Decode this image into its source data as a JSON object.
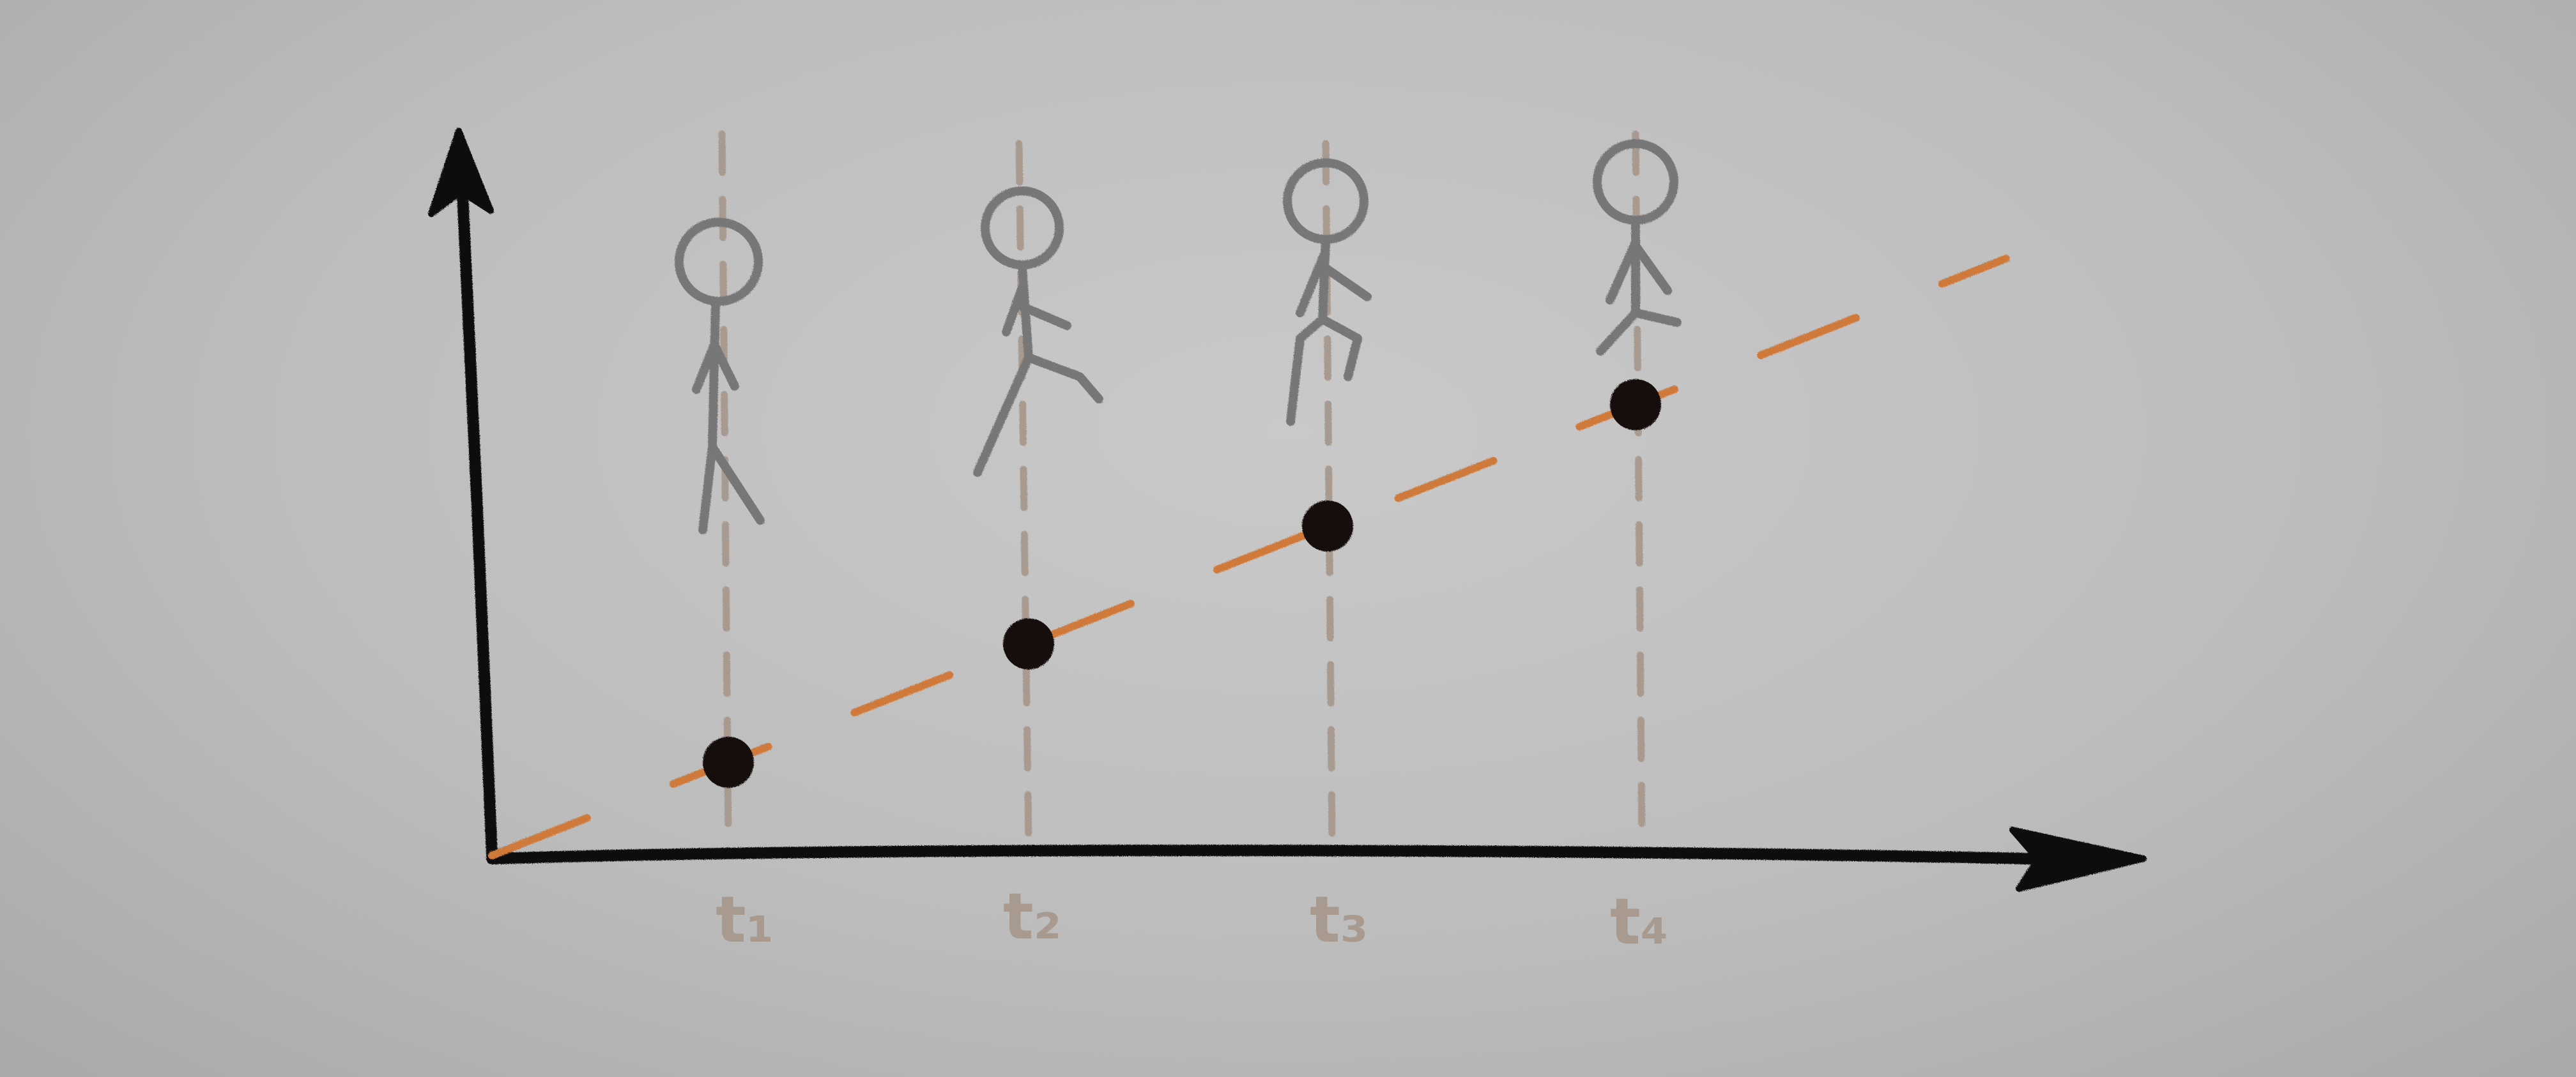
{
  "colors": {
    "axis": "#0d0d0d",
    "guide": "#a89a8e",
    "trend": "#cf7a3a",
    "figure": "#777777",
    "point": "#141010",
    "label": "#a89a8e"
  },
  "time_labels": [
    {
      "id": "t1",
      "text": "t₁"
    },
    {
      "id": "t2",
      "text": "t₂"
    },
    {
      "id": "t3",
      "text": "t₃"
    },
    {
      "id": "t4",
      "text": "t₄"
    }
  ],
  "figures": [
    {
      "pose": "standing"
    },
    {
      "pose": "running"
    },
    {
      "pose": "running"
    },
    {
      "pose": "walking"
    }
  ],
  "chart_data": {
    "type": "scatter",
    "title": "",
    "xlabel": "",
    "ylabel": "",
    "categories": [
      "t₁",
      "t₂",
      "t₃",
      "t₄"
    ],
    "values": [
      1,
      2,
      3,
      4
    ],
    "trend": "linear"
  }
}
